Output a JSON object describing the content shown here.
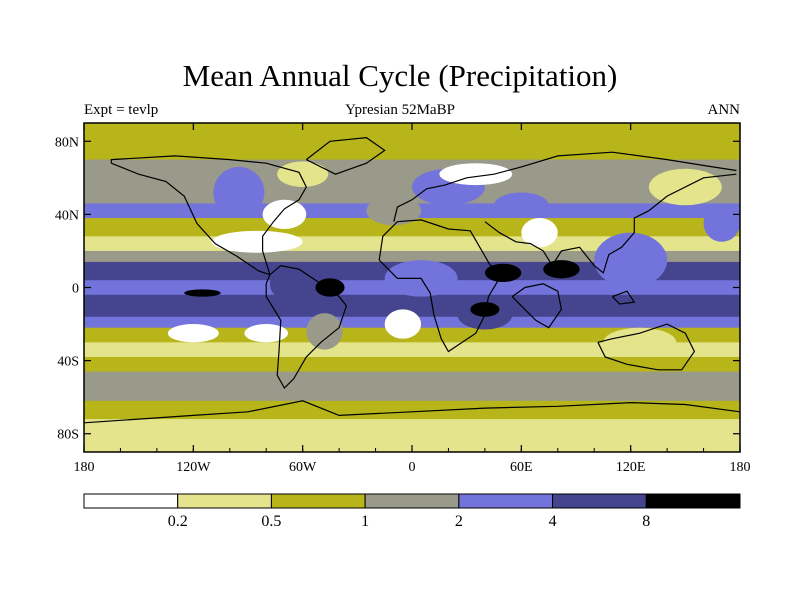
{
  "chart_data": {
    "type": "heatmap",
    "title": "Mean Annual Cycle (Precipitation)",
    "subtitle": "Ypresian  52MaBP",
    "left_label": "Expt = tevlp",
    "right_label": "ANN",
    "x_ticks": [
      "180",
      "120W",
      "60W",
      "0",
      "60E",
      "120E",
      "180"
    ],
    "y_ticks": [
      "80N",
      "40N",
      "0",
      "40S",
      "80S"
    ],
    "xlim": [
      -180,
      180
    ],
    "ylim": [
      -90,
      90
    ],
    "colorbar": {
      "levels": [
        "0.2",
        "0.5",
        "1",
        "2",
        "4",
        "8"
      ],
      "colors": [
        "#ffffff",
        "#e3e48c",
        "#b7b51a",
        "#9a9a8a",
        "#7373dc",
        "#45458f",
        "#000000"
      ]
    },
    "zonal_bands": [
      {
        "lat_top": 90,
        "lat_bottom": 80,
        "level": 2
      },
      {
        "lat_top": 80,
        "lat_bottom": 70,
        "level": 2
      },
      {
        "lat_top": 70,
        "lat_bottom": 58,
        "level": 3
      },
      {
        "lat_top": 58,
        "lat_bottom": 46,
        "level": 3
      },
      {
        "lat_top": 46,
        "lat_bottom": 38,
        "level": 4
      },
      {
        "lat_top": 38,
        "lat_bottom": 28,
        "level": 2
      },
      {
        "lat_top": 28,
        "lat_bottom": 20,
        "level": 1
      },
      {
        "lat_top": 20,
        "lat_bottom": 14,
        "level": 3
      },
      {
        "lat_top": 14,
        "lat_bottom": 4,
        "level": 5
      },
      {
        "lat_top": 4,
        "lat_bottom": -4,
        "level": 4
      },
      {
        "lat_top": -4,
        "lat_bottom": -16,
        "level": 5
      },
      {
        "lat_top": -16,
        "lat_bottom": -22,
        "level": 4
      },
      {
        "lat_top": -22,
        "lat_bottom": -30,
        "level": 2
      },
      {
        "lat_top": -30,
        "lat_bottom": -38,
        "level": 1
      },
      {
        "lat_top": -38,
        "lat_bottom": -46,
        "level": 2
      },
      {
        "lat_top": -46,
        "lat_bottom": -62,
        "level": 3
      },
      {
        "lat_top": -62,
        "lat_bottom": -72,
        "level": 2
      },
      {
        "lat_top": -72,
        "lat_bottom": -90,
        "level": 1
      }
    ],
    "blobs": [
      {
        "lon": -95,
        "lat": 52,
        "rlon": 14,
        "rlat": 14,
        "level": 4
      },
      {
        "lon": -70,
        "lat": 40,
        "rlon": 12,
        "rlat": 8,
        "level": 0
      },
      {
        "lon": -85,
        "lat": 25,
        "rlon": 25,
        "rlat": 6,
        "level": 0
      },
      {
        "lon": -60,
        "lat": 62,
        "rlon": 14,
        "rlat": 7,
        "level": 1
      },
      {
        "lon": -60,
        "lat": 2,
        "rlon": 18,
        "rlat": 12,
        "level": 5
      },
      {
        "lon": -45,
        "lat": 0,
        "rlon": 8,
        "rlat": 5,
        "level": 6
      },
      {
        "lon": -115,
        "lat": -3,
        "rlon": 10,
        "rlat": 2,
        "level": 6
      },
      {
        "lon": -48,
        "lat": -24,
        "rlon": 10,
        "rlat": 10,
        "level": 3
      },
      {
        "lon": -120,
        "lat": -25,
        "rlon": 14,
        "rlat": 5,
        "level": 0
      },
      {
        "lon": -80,
        "lat": -25,
        "rlon": 12,
        "rlat": 5,
        "level": 0
      },
      {
        "lon": -5,
        "lat": -20,
        "rlon": 10,
        "rlat": 8,
        "level": 0
      },
      {
        "lon": 5,
        "lat": 5,
        "rlon": 20,
        "rlat": 10,
        "level": 4
      },
      {
        "lon": -10,
        "lat": 42,
        "rlon": 15,
        "rlat": 8,
        "level": 3
      },
      {
        "lon": 20,
        "lat": 55,
        "rlon": 20,
        "rlat": 10,
        "level": 4
      },
      {
        "lon": 35,
        "lat": 62,
        "rlon": 20,
        "rlat": 6,
        "level": 0
      },
      {
        "lon": 70,
        "lat": 30,
        "rlon": 10,
        "rlat": 8,
        "level": 0
      },
      {
        "lon": 60,
        "lat": 45,
        "rlon": 15,
        "rlat": 7,
        "level": 4
      },
      {
        "lon": 50,
        "lat": 8,
        "rlon": 10,
        "rlat": 5,
        "level": 6
      },
      {
        "lon": 82,
        "lat": 10,
        "rlon": 10,
        "rlat": 5,
        "level": 6
      },
      {
        "lon": 120,
        "lat": 15,
        "rlon": 20,
        "rlat": 15,
        "level": 4
      },
      {
        "lon": 40,
        "lat": -15,
        "rlon": 15,
        "rlat": 8,
        "level": 5
      },
      {
        "lon": 40,
        "lat": -12,
        "rlon": 8,
        "rlat": 4,
        "level": 6
      },
      {
        "lon": 125,
        "lat": -30,
        "rlon": 20,
        "rlat": 8,
        "level": 1
      },
      {
        "lon": 150,
        "lat": 55,
        "rlon": 20,
        "rlat": 10,
        "level": 1
      },
      {
        "lon": 170,
        "lat": 35,
        "rlon": 10,
        "rlat": 10,
        "level": 4
      }
    ]
  }
}
